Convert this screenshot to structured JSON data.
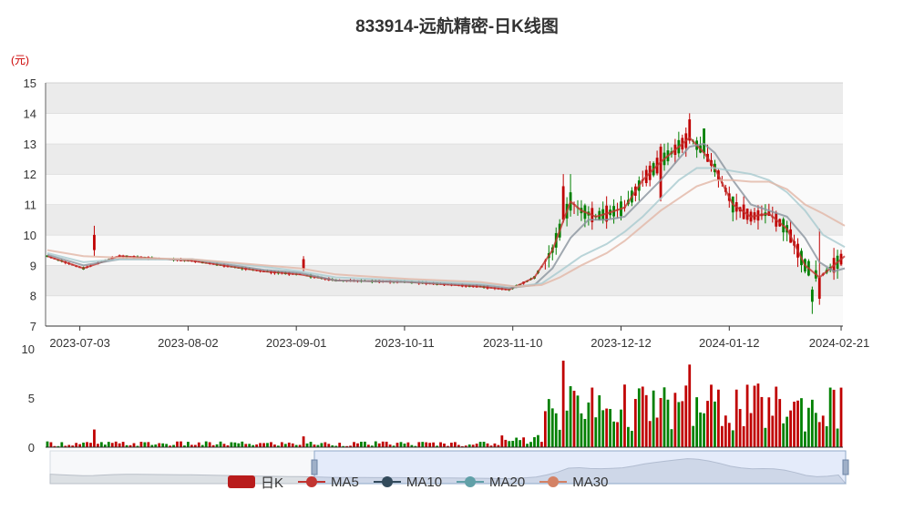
{
  "title": "833914-远航精密-日K线图",
  "unit_label": "(元)",
  "legend": [
    {
      "label": "日K",
      "color": "#b91c1c",
      "kind": "box"
    },
    {
      "label": "MA5",
      "color": "#c23531",
      "kind": "line"
    },
    {
      "label": "MA10",
      "color": "#334b5c",
      "kind": "line"
    },
    {
      "label": "MA20",
      "color": "#61a0a8",
      "kind": "line"
    },
    {
      "label": "MA30",
      "color": "#d48265",
      "kind": "line"
    }
  ],
  "colors": {
    "up": "#c00000",
    "down": "#008000",
    "band": "#ebebeb"
  },
  "chart_data": [
    {
      "type": "candlestick",
      "title": "833914-远航精密-日K线图",
      "ylabel": "(元)",
      "ylim": [
        7,
        15
      ],
      "y_ticks": [
        7,
        8,
        9,
        10,
        11,
        12,
        13,
        14,
        15
      ],
      "x_ticks": [
        "2023-07-03",
        "2023-08-02",
        "2023-09-01",
        "2023-10-11",
        "2023-11-10",
        "2023-12-12",
        "2024-01-12",
        "2024-02-21"
      ],
      "x_tick_index": [
        9,
        39,
        69,
        99,
        129,
        159,
        189,
        220
      ],
      "n_days": 221,
      "series": [
        {
          "name": "MA5",
          "color": "#c23531",
          "x": [
            0,
            10,
            20,
            40,
            60,
            70,
            80,
            100,
            120,
            128,
            135,
            140,
            145,
            148,
            152,
            155,
            160,
            165,
            170,
            175,
            178,
            182,
            185,
            190,
            195,
            200,
            205,
            210,
            214,
            218,
            221
          ],
          "y": [
            9.3,
            8.9,
            9.3,
            9.15,
            8.8,
            8.7,
            8.5,
            8.45,
            8.3,
            8.2,
            8.6,
            9.5,
            11.1,
            10.8,
            10.6,
            10.7,
            10.9,
            11.8,
            12.4,
            12.9,
            13.2,
            12.7,
            12.2,
            11.0,
            10.6,
            10.7,
            10.2,
            9.0,
            8.6,
            9.0,
            9.3
          ]
        },
        {
          "name": "MA10",
          "color": "#8a949e",
          "x": [
            0,
            10,
            20,
            40,
            60,
            70,
            80,
            100,
            120,
            128,
            135,
            140,
            145,
            150,
            155,
            160,
            165,
            170,
            175,
            178,
            182,
            185,
            190,
            195,
            200,
            205,
            210,
            214,
            218,
            221
          ],
          "y": [
            9.35,
            9.0,
            9.2,
            9.2,
            8.85,
            8.75,
            8.5,
            8.45,
            8.35,
            8.25,
            8.35,
            8.9,
            9.9,
            10.5,
            10.5,
            10.6,
            11.2,
            11.8,
            12.5,
            12.9,
            13.0,
            12.7,
            11.8,
            11.0,
            10.8,
            10.6,
            9.9,
            9.1,
            8.8,
            8.9
          ]
        },
        {
          "name": "MA20",
          "color": "#a9cbd0",
          "x": [
            0,
            10,
            20,
            40,
            60,
            70,
            80,
            100,
            120,
            130,
            137,
            142,
            148,
            155,
            160,
            165,
            170,
            175,
            180,
            185,
            190,
            195,
            200,
            205,
            210,
            215,
            221
          ],
          "y": [
            9.4,
            9.1,
            9.2,
            9.2,
            8.95,
            8.8,
            8.6,
            8.5,
            8.4,
            8.3,
            8.4,
            8.8,
            9.3,
            9.7,
            10.1,
            10.6,
            11.2,
            11.8,
            12.2,
            12.2,
            12.1,
            12.0,
            11.8,
            11.4,
            10.8,
            10.0,
            9.6
          ]
        },
        {
          "name": "MA30",
          "color": "#e2b6a6",
          "x": [
            0,
            10,
            20,
            40,
            60,
            70,
            80,
            100,
            120,
            130,
            137,
            142,
            148,
            155,
            160,
            165,
            170,
            175,
            180,
            185,
            190,
            195,
            200,
            205,
            210,
            215,
            221
          ],
          "y": [
            9.5,
            9.3,
            9.25,
            9.2,
            9.0,
            8.9,
            8.7,
            8.55,
            8.45,
            8.3,
            8.35,
            8.6,
            9.0,
            9.4,
            9.8,
            10.3,
            10.8,
            11.2,
            11.6,
            11.8,
            11.8,
            11.75,
            11.75,
            11.5,
            11.0,
            10.7,
            10.3
          ]
        }
      ],
      "candles": [
        {
          "i": 13,
          "o": 9.5,
          "c": 10.0,
          "h": 10.3,
          "l": 9.3
        },
        {
          "i": 71,
          "o": 8.9,
          "c": 9.2,
          "h": 9.3,
          "l": 8.8
        },
        {
          "i": 143,
          "o": 10.5,
          "c": 11.6,
          "h": 12.0,
          "l": 10.4
        },
        {
          "i": 145,
          "o": 11.4,
          "c": 10.8,
          "h": 12.0,
          "l": 10.6
        },
        {
          "i": 170,
          "o": 11.2,
          "c": 12.9,
          "h": 13.0,
          "l": 11.1
        },
        {
          "i": 178,
          "o": 13.1,
          "c": 13.8,
          "h": 14.0,
          "l": 13.0
        },
        {
          "i": 182,
          "o": 13.5,
          "c": 12.7,
          "h": 13.5,
          "l": 12.5
        },
        {
          "i": 212,
          "o": 8.2,
          "c": 7.8,
          "h": 8.3,
          "l": 7.4
        },
        {
          "i": 214,
          "o": 7.9,
          "c": 8.6,
          "h": 10.2,
          "l": 7.7
        }
      ]
    },
    {
      "type": "bar",
      "ylim": [
        0,
        10
      ],
      "y_ticks": [
        0,
        5,
        10
      ],
      "highlights": [
        {
          "i": 13,
          "value": 1.8
        },
        {
          "i": 71,
          "value": 1.1
        },
        {
          "i": 143,
          "value": 8.8
        },
        {
          "i": 145,
          "value": 6.2
        },
        {
          "i": 178,
          "value": 8.4
        }
      ]
    }
  ]
}
